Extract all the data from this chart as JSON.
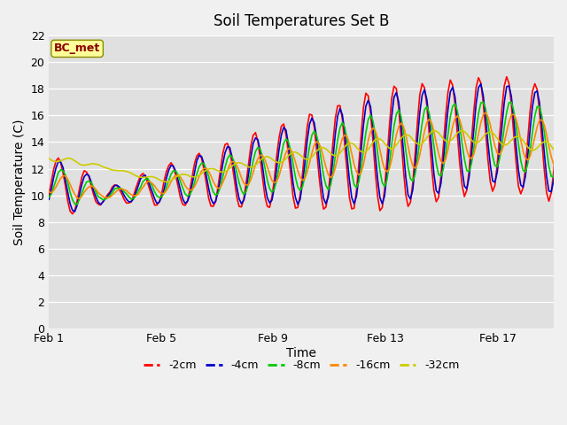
{
  "title": "Soil Temperatures Set B",
  "xlabel": "Time",
  "ylabel": "Soil Temperature (C)",
  "ylim": [
    0,
    22
  ],
  "yticks": [
    0,
    2,
    4,
    6,
    8,
    10,
    12,
    14,
    16,
    18,
    20,
    22
  ],
  "xtick_labels": [
    "Feb 1",
    "Feb 5",
    "Feb 9",
    "Feb 13",
    "Feb 17"
  ],
  "xtick_positions": [
    0,
    4,
    8,
    12,
    16
  ],
  "annotation_text": "BC_met",
  "annotation_color": "#8B0000",
  "annotation_bg": "#FFFF99",
  "annotation_edge": "#8B8B00",
  "line_colors": [
    "#FF0000",
    "#0000CC",
    "#00CC00",
    "#FF8800",
    "#CCCC00"
  ],
  "line_labels": [
    "-2cm",
    "-4cm",
    "-8cm",
    "-16cm",
    "-32cm"
  ],
  "line_width": 1.2,
  "fig_bg": "#F0F0F0",
  "plot_bg": "#E0E0E0",
  "grid_color": "#FFFFFF",
  "title_fontsize": 12,
  "label_fontsize": 10,
  "tick_fontsize": 9,
  "legend_fontsize": 9
}
